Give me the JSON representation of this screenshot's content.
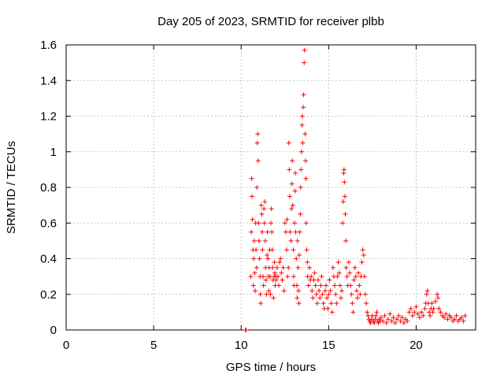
{
  "chart_data": {
    "type": "scatter",
    "title": "Day 205 of 2023, SRMTID for receiver plbb",
    "xlabel": "GPS time / hours",
    "ylabel": "SRMTID / TECUs",
    "xlim": [
      0,
      23.4
    ],
    "ylim": [
      0,
      1.6
    ],
    "xticks": [
      0,
      5,
      10,
      15,
      20
    ],
    "yticks": [
      0,
      0.2,
      0.4,
      0.6,
      0.8,
      1,
      1.2,
      1.4,
      1.6
    ],
    "xtick_labels": [
      "0",
      "5",
      "10",
      "15",
      "20"
    ],
    "ytick_labels": [
      "0",
      "0.2",
      "0.4",
      "0.6",
      "0.8",
      "1",
      "1.2",
      "1.4",
      "1.6"
    ],
    "grid": true,
    "marker": "+",
    "marker_color": "#ff0000",
    "series": [
      {
        "name": "SRMTID",
        "points": [
          [
            10.25,
            0.0
          ],
          [
            10.28,
            0.0
          ],
          [
            10.55,
            0.3
          ],
          [
            10.58,
            0.55
          ],
          [
            10.6,
            0.85
          ],
          [
            10.62,
            0.75
          ],
          [
            10.65,
            0.62
          ],
          [
            10.68,
            0.45
          ],
          [
            10.7,
            0.25
          ],
          [
            10.72,
            0.4
          ],
          [
            10.75,
            0.5
          ],
          [
            10.78,
            0.32
          ],
          [
            10.8,
            0.22
          ],
          [
            10.83,
            0.6
          ],
          [
            10.85,
            0.45
          ],
          [
            10.88,
            0.35
          ],
          [
            10.9,
            0.8
          ],
          [
            10.92,
            1.05
          ],
          [
            10.95,
            1.1
          ],
          [
            10.97,
            0.95
          ],
          [
            11.0,
            0.6
          ],
          [
            11.02,
            0.5
          ],
          [
            11.05,
            0.4
          ],
          [
            11.08,
            0.3
          ],
          [
            11.1,
            0.2
          ],
          [
            11.12,
            0.15
          ],
          [
            11.15,
            0.7
          ],
          [
            11.18,
            0.65
          ],
          [
            11.2,
            0.55
          ],
          [
            11.22,
            0.45
          ],
          [
            11.25,
            0.3
          ],
          [
            11.28,
            0.25
          ],
          [
            11.3,
            0.68
          ],
          [
            11.33,
            0.6
          ],
          [
            11.35,
            0.72
          ],
          [
            11.38,
            0.5
          ],
          [
            11.4,
            0.35
          ],
          [
            11.42,
            0.28
          ],
          [
            11.45,
            0.2
          ],
          [
            11.48,
            0.42
          ],
          [
            11.5,
            0.55
          ],
          [
            11.53,
            0.4
          ],
          [
            11.55,
            0.3
          ],
          [
            11.58,
            0.22
          ],
          [
            11.6,
            0.35
          ],
          [
            11.63,
            0.45
          ],
          [
            11.65,
            0.3
          ],
          [
            11.68,
            0.2
          ],
          [
            11.7,
            0.6
          ],
          [
            11.73,
            0.68
          ],
          [
            11.75,
            0.55
          ],
          [
            11.78,
            0.45
          ],
          [
            11.8,
            0.35
          ],
          [
            11.83,
            0.28
          ],
          [
            11.85,
            0.18
          ],
          [
            11.88,
            0.3
          ],
          [
            11.9,
            0.38
          ],
          [
            11.93,
            0.32
          ],
          [
            11.95,
            0.25
          ],
          [
            11.98,
            0.3
          ],
          [
            12.0,
            0.28
          ],
          [
            12.05,
            0.35
          ],
          [
            12.1,
            0.3
          ],
          [
            12.15,
            0.25
          ],
          [
            12.2,
            0.38
          ],
          [
            12.25,
            0.4
          ],
          [
            12.3,
            0.32
          ],
          [
            12.35,
            0.28
          ],
          [
            12.4,
            0.35
          ],
          [
            12.45,
            0.22
          ],
          [
            12.5,
            0.6
          ],
          [
            12.55,
            0.55
          ],
          [
            12.6,
            0.45
          ],
          [
            12.62,
            0.62
          ],
          [
            12.65,
            0.3
          ],
          [
            12.7,
            0.35
          ],
          [
            12.72,
            1.05
          ],
          [
            12.75,
            0.9
          ],
          [
            12.78,
            0.75
          ],
          [
            12.8,
            0.55
          ],
          [
            12.85,
            0.5
          ],
          [
            12.88,
            0.68
          ],
          [
            12.9,
            0.82
          ],
          [
            12.92,
            0.95
          ],
          [
            12.95,
            0.7
          ],
          [
            12.98,
            0.45
          ],
          [
            13.0,
            0.3
          ],
          [
            13.02,
            0.25
          ],
          [
            13.05,
            0.6
          ],
          [
            13.08,
            0.78
          ],
          [
            13.1,
            0.88
          ],
          [
            13.12,
            0.55
          ],
          [
            13.15,
            0.4
          ],
          [
            13.18,
            0.25
          ],
          [
            13.2,
            0.18
          ],
          [
            13.22,
            0.5
          ],
          [
            13.25,
            0.35
          ],
          [
            13.28,
            0.22
          ],
          [
            13.3,
            0.15
          ],
          [
            13.32,
            0.42
          ],
          [
            13.35,
            0.55
          ],
          [
            13.38,
            0.65
          ],
          [
            13.4,
            0.8
          ],
          [
            13.42,
            0.9
          ],
          [
            13.45,
            1.0
          ],
          [
            13.48,
            1.15
          ],
          [
            13.5,
            1.2
          ],
          [
            13.52,
            1.05
          ],
          [
            13.55,
            1.25
          ],
          [
            13.57,
            1.32
          ],
          [
            13.6,
            1.5
          ],
          [
            13.62,
            1.57
          ],
          [
            13.65,
            1.1
          ],
          [
            13.68,
            0.95
          ],
          [
            13.7,
            0.85
          ],
          [
            13.72,
            0.6
          ],
          [
            13.75,
            0.45
          ],
          [
            13.78,
            0.38
          ],
          [
            13.8,
            0.3
          ],
          [
            13.85,
            0.25
          ],
          [
            13.9,
            0.35
          ],
          [
            13.95,
            0.28
          ],
          [
            14.0,
            0.3
          ],
          [
            14.05,
            0.22
          ],
          [
            14.1,
            0.18
          ],
          [
            14.15,
            0.28
          ],
          [
            14.2,
            0.32
          ],
          [
            14.25,
            0.25
          ],
          [
            14.3,
            0.2
          ],
          [
            14.35,
            0.15
          ],
          [
            14.4,
            0.28
          ],
          [
            14.45,
            0.22
          ],
          [
            14.5,
            0.18
          ],
          [
            14.55,
            0.25
          ],
          [
            14.6,
            0.3
          ],
          [
            14.65,
            0.2
          ],
          [
            14.7,
            0.15
          ],
          [
            14.75,
            0.12
          ],
          [
            14.8,
            0.22
          ],
          [
            14.85,
            0.25
          ],
          [
            14.9,
            0.18
          ],
          [
            14.95,
            0.12
          ],
          [
            15.0,
            0.2
          ],
          [
            15.05,
            0.28
          ],
          [
            15.1,
            0.22
          ],
          [
            15.15,
            0.15
          ],
          [
            15.2,
            0.1
          ],
          [
            15.25,
            0.35
          ],
          [
            15.3,
            0.3
          ],
          [
            15.35,
            0.25
          ],
          [
            15.4,
            0.2
          ],
          [
            15.45,
            0.15
          ],
          [
            15.5,
            0.3
          ],
          [
            15.55,
            0.38
          ],
          [
            15.6,
            0.32
          ],
          [
            15.65,
            0.25
          ],
          [
            15.7,
            0.18
          ],
          [
            15.75,
            0.22
          ],
          [
            15.8,
            0.6
          ],
          [
            15.83,
            0.72
          ],
          [
            15.86,
            0.88
          ],
          [
            15.88,
            0.9
          ],
          [
            15.9,
            0.83
          ],
          [
            15.93,
            0.75
          ],
          [
            15.95,
            0.65
          ],
          [
            15.98,
            0.5
          ],
          [
            16.0,
            0.35
          ],
          [
            16.05,
            0.3
          ],
          [
            16.1,
            0.25
          ],
          [
            16.15,
            0.38
          ],
          [
            16.2,
            0.32
          ],
          [
            16.25,
            0.25
          ],
          [
            16.3,
            0.2
          ],
          [
            16.35,
            0.15
          ],
          [
            16.4,
            0.1
          ],
          [
            16.45,
            0.28
          ],
          [
            16.5,
            0.35
          ],
          [
            16.55,
            0.3
          ],
          [
            16.6,
            0.22
          ],
          [
            16.65,
            0.18
          ],
          [
            16.7,
            0.32
          ],
          [
            16.75,
            0.25
          ],
          [
            16.8,
            0.2
          ],
          [
            16.85,
            0.3
          ],
          [
            16.9,
            0.38
          ],
          [
            16.95,
            0.45
          ],
          [
            17.0,
            0.42
          ],
          [
            17.05,
            0.3
          ],
          [
            17.1,
            0.2
          ],
          [
            17.15,
            0.15
          ],
          [
            17.2,
            0.1
          ],
          [
            17.25,
            0.08
          ],
          [
            17.3,
            0.06
          ],
          [
            17.35,
            0.05
          ],
          [
            17.4,
            0.04
          ],
          [
            17.45,
            0.06
          ],
          [
            17.5,
            0.08
          ],
          [
            17.55,
            0.05
          ],
          [
            17.6,
            0.04
          ],
          [
            17.65,
            0.06
          ],
          [
            17.7,
            0.08
          ],
          [
            17.75,
            0.1
          ],
          [
            17.8,
            0.05
          ],
          [
            17.85,
            0.04
          ],
          [
            17.9,
            0.06
          ],
          [
            17.95,
            0.05
          ],
          [
            18.0,
            0.07
          ],
          [
            18.1,
            0.05
          ],
          [
            18.2,
            0.08
          ],
          [
            18.3,
            0.04
          ],
          [
            18.4,
            0.06
          ],
          [
            18.5,
            0.09
          ],
          [
            18.6,
            0.05
          ],
          [
            18.7,
            0.07
          ],
          [
            18.8,
            0.04
          ],
          [
            18.9,
            0.06
          ],
          [
            19.0,
            0.08
          ],
          [
            19.1,
            0.05
          ],
          [
            19.2,
            0.07
          ],
          [
            19.3,
            0.04
          ],
          [
            19.4,
            0.06
          ],
          [
            19.5,
            0.05
          ],
          [
            19.6,
            0.1
          ],
          [
            19.7,
            0.12
          ],
          [
            19.8,
            0.08
          ],
          [
            19.9,
            0.1
          ],
          [
            20.0,
            0.13
          ],
          [
            20.1,
            0.09
          ],
          [
            20.2,
            0.07
          ],
          [
            20.3,
            0.1
          ],
          [
            20.4,
            0.08
          ],
          [
            20.5,
            0.12
          ],
          [
            20.55,
            0.15
          ],
          [
            20.6,
            0.2
          ],
          [
            20.65,
            0.22
          ],
          [
            20.7,
            0.15
          ],
          [
            20.75,
            0.1
          ],
          [
            20.8,
            0.08
          ],
          [
            20.85,
            0.12
          ],
          [
            20.9,
            0.15
          ],
          [
            20.95,
            0.1
          ],
          [
            21.0,
            0.12
          ],
          [
            21.1,
            0.16
          ],
          [
            21.2,
            0.2
          ],
          [
            21.25,
            0.18
          ],
          [
            21.3,
            0.12
          ],
          [
            21.4,
            0.1
          ],
          [
            21.5,
            0.08
          ],
          [
            21.6,
            0.07
          ],
          [
            21.7,
            0.09
          ],
          [
            21.8,
            0.06
          ],
          [
            21.9,
            0.08
          ],
          [
            22.0,
            0.07
          ],
          [
            22.1,
            0.05
          ],
          [
            22.2,
            0.06
          ],
          [
            22.3,
            0.08
          ],
          [
            22.4,
            0.05
          ],
          [
            22.5,
            0.06
          ],
          [
            22.6,
            0.07
          ],
          [
            22.7,
            0.05
          ],
          [
            22.8,
            0.08
          ]
        ]
      }
    ]
  }
}
